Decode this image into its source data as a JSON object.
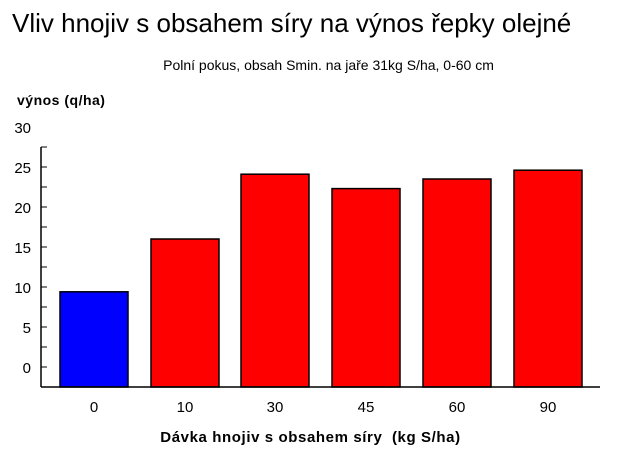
{
  "chart_data": {
    "type": "bar",
    "title": "Vliv hnojiv s obsahem síry na výnos řepky olejné",
    "subtitle": "Polní pokus, obsah Smin. na jaře 31kg S/ha, 0-60 cm",
    "xlabel": "Dávka hnojiv s obsahem síry  (kg S/ha)",
    "ylabel": "výnos (q/ha)",
    "categories": [
      "0",
      "10",
      "30",
      "45",
      "60",
      "90"
    ],
    "values": [
      9.4,
      16.0,
      24.1,
      22.3,
      23.5,
      24.6
    ],
    "colors": [
      "#0000ff",
      "#ff0000",
      "#ff0000",
      "#ff0000",
      "#ff0000",
      "#ff0000"
    ],
    "yticks": [
      "0",
      "5",
      "10",
      "15",
      "20",
      "25",
      "30"
    ],
    "ylim": [
      0,
      30
    ],
    "grid": false,
    "legend": null
  }
}
